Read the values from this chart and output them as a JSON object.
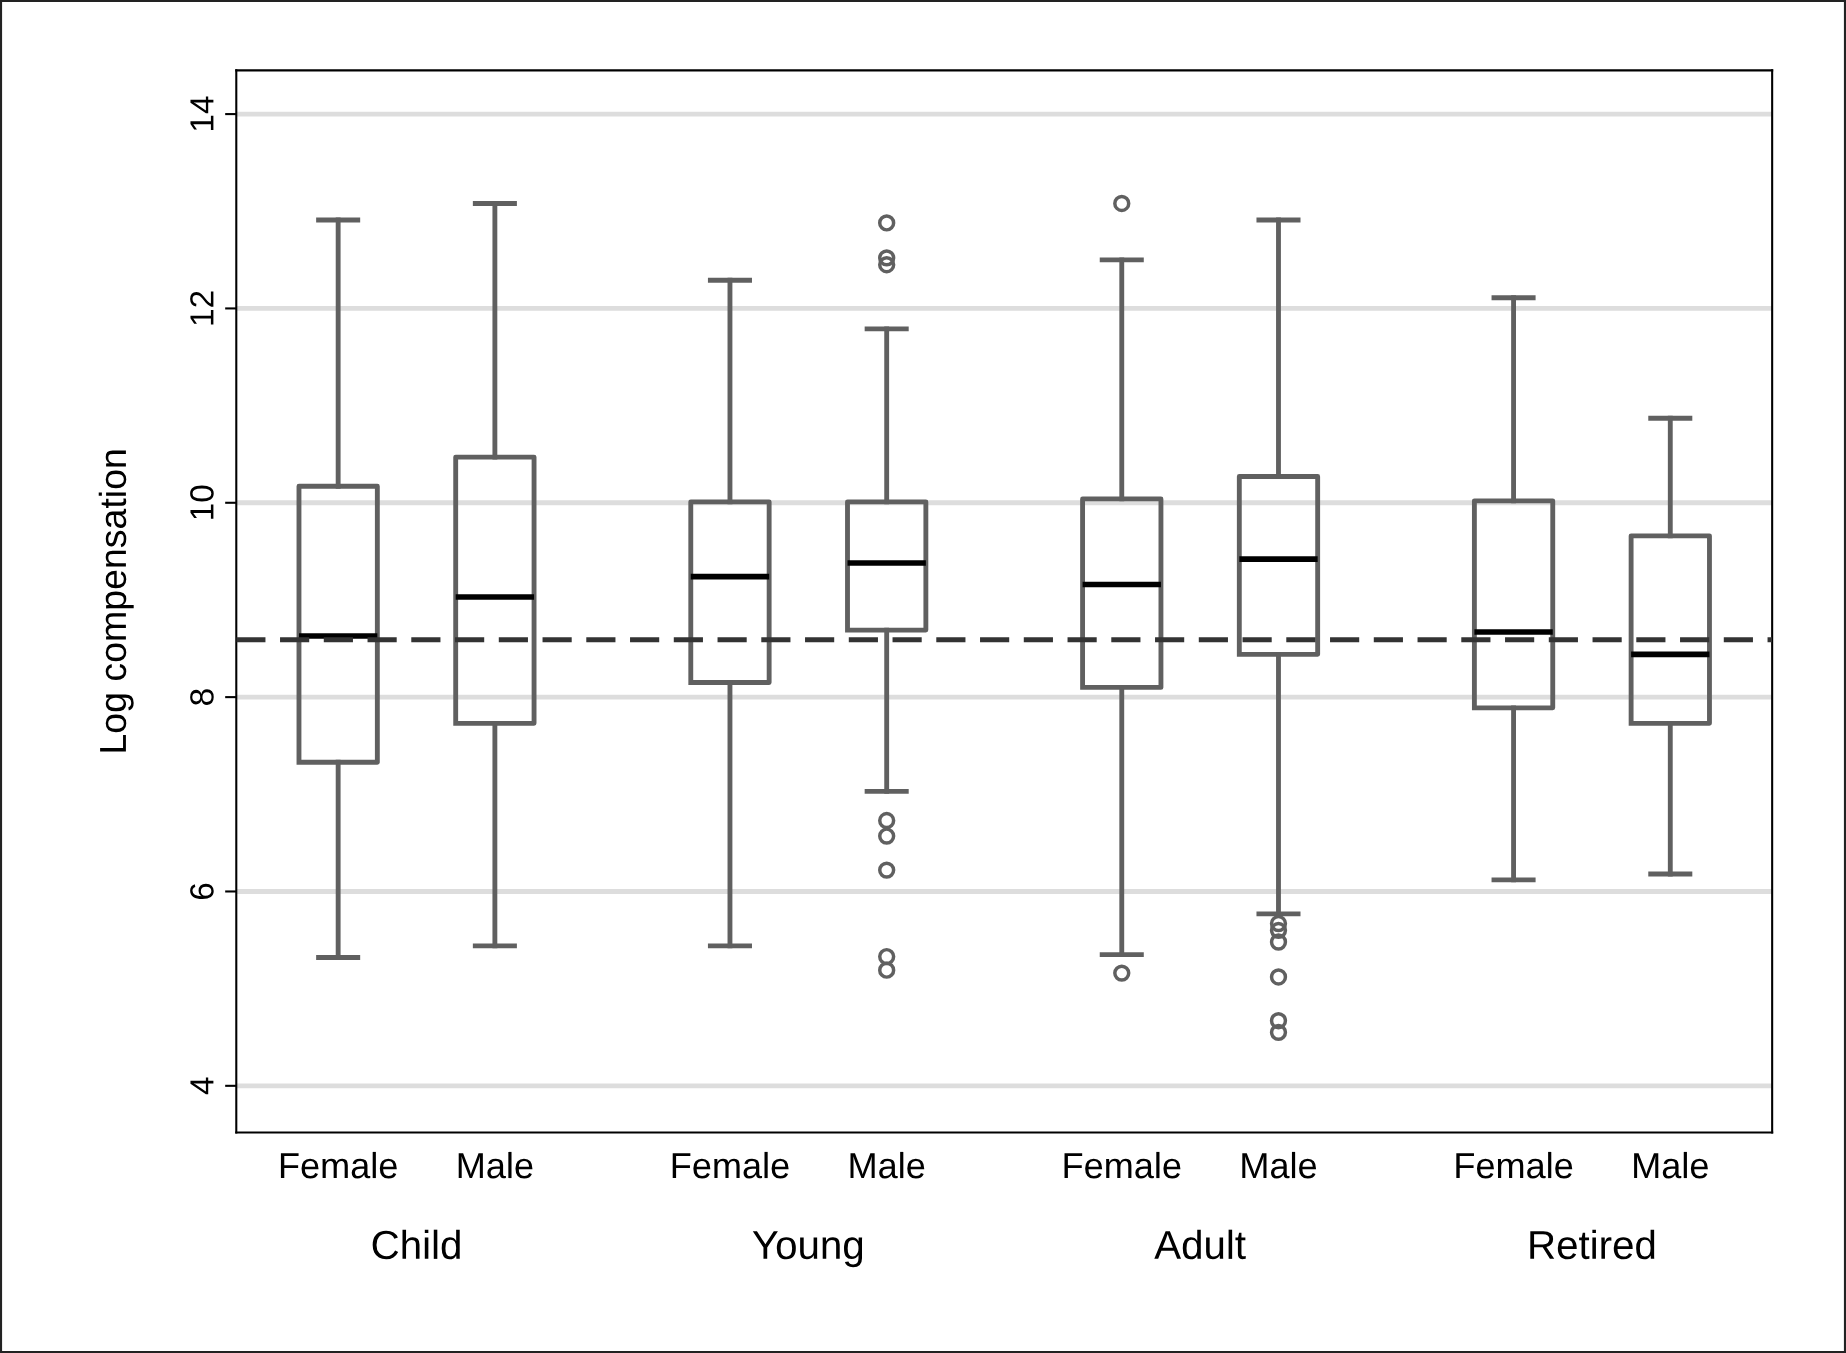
{
  "chart_data": {
    "type": "box",
    "ylabel": "Log compensation",
    "categories": [
      "Female",
      "Male",
      "Female",
      "Male",
      "Female",
      "Male",
      "Female",
      "Male"
    ],
    "annotations": [
      "Child",
      "Young",
      "Adult",
      "Retired"
    ],
    "series": [
      {
        "color": "#606060",
        "boxes": [
          {
            "low": 5.32,
            "q1": 7.33,
            "median": 8.63,
            "q3": 10.17,
            "high": 12.91
          },
          {
            "low": 5.44,
            "q1": 7.73,
            "median": 9.03,
            "q3": 10.47,
            "high": 13.08
          },
          {
            "low": 5.44,
            "q1": 8.15,
            "median": 9.24,
            "q3": 10.01,
            "high": 12.29
          },
          {
            "low": 7.03,
            "q1": 8.69,
            "median": 9.38,
            "q3": 10.01,
            "high": 11.79,
            "outliers": [
              12.88,
              12.52,
              12.45,
              6.73,
              6.57,
              6.22,
              5.33,
              5.19
            ]
          },
          {
            "low": 5.35,
            "q1": 8.1,
            "median": 9.16,
            "q3": 10.04,
            "high": 12.5,
            "outliers": [
              13.08,
              5.16
            ]
          },
          {
            "low": 5.77,
            "q1": 8.44,
            "median": 9.42,
            "q3": 10.27,
            "high": 12.91,
            "outliers": [
              5.67,
              5.6,
              5.48,
              5.12,
              4.67,
              4.55
            ]
          },
          {
            "low": 6.12,
            "q1": 7.89,
            "median": 8.67,
            "q3": 10.02,
            "high": 12.11
          },
          {
            "low": 6.18,
            "q1": 7.73,
            "median": 8.44,
            "q3": 9.66,
            "high": 10.87
          }
        ]
      }
    ],
    "ref_lines": [
      {
        "axis": "y",
        "value": 8.59,
        "color": "#333333",
        "line_style": "dashed"
      }
    ],
    "ylim": [
      3.52,
      14.45
    ],
    "yticks": [
      4,
      6,
      8,
      10,
      12,
      14
    ],
    "grid": "y"
  }
}
